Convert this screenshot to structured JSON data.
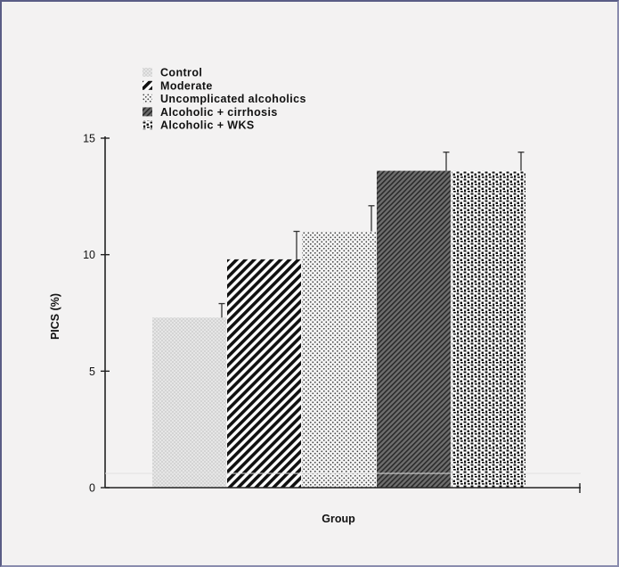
{
  "chart_data": {
    "type": "bar",
    "title": "",
    "xlabel": "Group",
    "ylabel": "PICS (%)",
    "ylim": [
      0,
      15
    ],
    "yticks": [
      "0",
      "5",
      "10",
      "15"
    ],
    "grid": false,
    "legend_position": "top-left",
    "series": [
      {
        "name": "Control",
        "value": 7.3,
        "error": 0.6,
        "pattern": "light-cross"
      },
      {
        "name": "Moderate",
        "value": 9.8,
        "error": 1.2,
        "pattern": "diagonal-stripes"
      },
      {
        "name": "Uncomplicated alcoholics",
        "value": 11.0,
        "error": 1.1,
        "pattern": "dots"
      },
      {
        "name": "Alcoholic + cirrhosis",
        "value": 13.6,
        "error": 0.8,
        "pattern": "dark-hatch"
      },
      {
        "name": "Alcoholic + WKS",
        "value": 13.6,
        "error": 0.8,
        "pattern": "dense-marks"
      }
    ]
  }
}
